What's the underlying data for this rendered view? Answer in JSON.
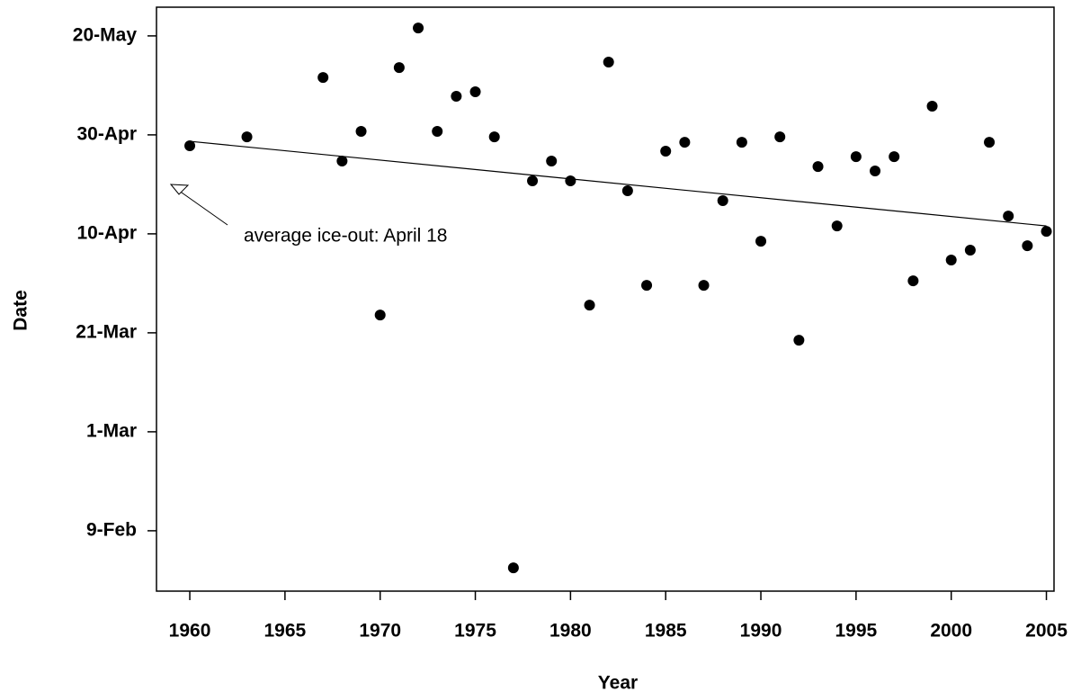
{
  "chart_data": {
    "type": "scatter",
    "x_label": "Year",
    "y_label": "Date",
    "x": [
      1960,
      1963,
      1967,
      1968,
      1969,
      1970,
      1971,
      1972,
      1973,
      1974,
      1975,
      1976,
      1977,
      1978,
      1979,
      1980,
      1981,
      1982,
      1983,
      1984,
      1985,
      1986,
      1987,
      1988,
      1989,
      1990,
      1991,
      1992,
      1993,
      1994,
      1995,
      1996,
      1997,
      1998,
      1999,
      2000,
      2001,
      2002,
      2003,
      2004,
      2005
    ],
    "values": [
      117.8,
      119.6,
      131.6,
      114.7,
      120.7,
      83.6,
      133.6,
      141.6,
      120.7,
      127.8,
      128.7,
      119.6,
      32.5,
      110.7,
      114.7,
      110.7,
      85.6,
      134.7,
      108.7,
      89.6,
      116.7,
      118.5,
      89.6,
      106.7,
      118.5,
      98.5,
      119.6,
      78.5,
      113.6,
      101.6,
      115.6,
      112.7,
      115.6,
      90.5,
      125.8,
      94.7,
      96.7,
      118.5,
      103.6,
      97.6,
      100.5
    ],
    "color": "#000000",
    "trend_line": {
      "x": [
        1960,
        2005
      ],
      "y": [
        118.7,
        101.6
      ]
    },
    "annotation": "average ice-out: April 18",
    "xlim": [
      1958.25,
      2005.4
    ],
    "xticks": [
      1960,
      1965,
      1970,
      1975,
      1980,
      1985,
      1990,
      1995,
      2000,
      2005
    ],
    "ylim": [
      27.8,
      145.8
    ],
    "yticks": [
      {
        "value": 40,
        "label": "9-Feb"
      },
      {
        "value": 60,
        "label": "1-Mar"
      },
      {
        "value": 80,
        "label": "21-Mar"
      },
      {
        "value": 100,
        "label": "10-Apr"
      },
      {
        "value": 120,
        "label": "30-Apr"
      },
      {
        "value": 140,
        "label": "20-May"
      }
    ],
    "grid": false
  }
}
